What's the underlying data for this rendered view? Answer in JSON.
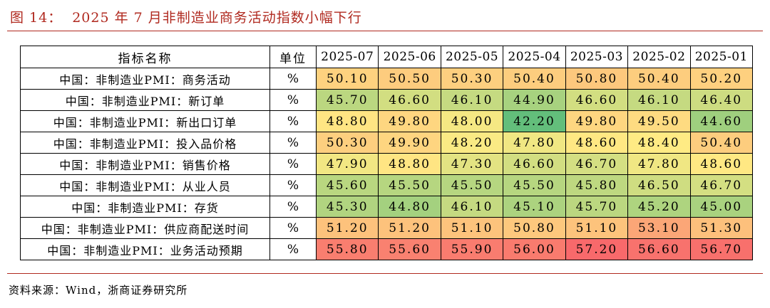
{
  "figure": {
    "number": "图 14：",
    "title": "2025 年 7 月非制造业商务活动指数小幅下行"
  },
  "table": {
    "header": {
      "name": "指标名称",
      "unit": "单位",
      "dates": [
        "2025-07",
        "2025-06",
        "2025-05",
        "2025-04",
        "2025-03",
        "2025-02",
        "2025-01"
      ]
    },
    "rows": [
      {
        "name": "中国：非制造业PMI：商务活动",
        "unit": "%",
        "values": [
          "50.10",
          "50.50",
          "50.30",
          "50.40",
          "50.80",
          "50.40",
          "50.20"
        ]
      },
      {
        "name": "中国：非制造业PMI：新订单",
        "unit": "%",
        "values": [
          "45.70",
          "46.60",
          "46.10",
          "44.90",
          "46.60",
          "46.10",
          "46.40"
        ]
      },
      {
        "name": "中国：非制造业PMI：新出口订单",
        "unit": "%",
        "values": [
          "48.80",
          "49.80",
          "48.00",
          "42.20",
          "49.80",
          "49.50",
          "44.60"
        ]
      },
      {
        "name": "中国：非制造业PMI：投入品价格",
        "unit": "%",
        "values": [
          "50.30",
          "49.90",
          "48.20",
          "47.80",
          "48.60",
          "48.40",
          "50.40"
        ]
      },
      {
        "name": "中国：非制造业PMI：销售价格",
        "unit": "%",
        "values": [
          "47.90",
          "48.80",
          "47.30",
          "46.60",
          "46.70",
          "47.80",
          "48.60"
        ]
      },
      {
        "name": "中国：非制造业PMI：从业人员",
        "unit": "%",
        "values": [
          "45.60",
          "45.50",
          "45.50",
          "45.50",
          "45.80",
          "46.50",
          "46.70"
        ]
      },
      {
        "name": "中国：非制造业PMI：存货",
        "unit": "%",
        "values": [
          "45.30",
          "44.80",
          "46.10",
          "45.10",
          "45.70",
          "45.20",
          "45.00"
        ]
      },
      {
        "name": "中国：非制造业PMI：供应商配送时间",
        "unit": "%",
        "values": [
          "51.20",
          "51.20",
          "51.10",
          "50.80",
          "51.10",
          "53.10",
          "51.30"
        ]
      },
      {
        "name": "中国：非制造业PMI：业务活动预期",
        "unit": "%",
        "values": [
          "55.80",
          "55.60",
          "55.90",
          "56.00",
          "57.20",
          "56.60",
          "56.70"
        ]
      }
    ],
    "colors": {
      "low": "#63be7b",
      "mid": "#ffeb84",
      "high": "#f8696b"
    }
  },
  "source": "资料来源：Wind，浙商证券研究所"
}
